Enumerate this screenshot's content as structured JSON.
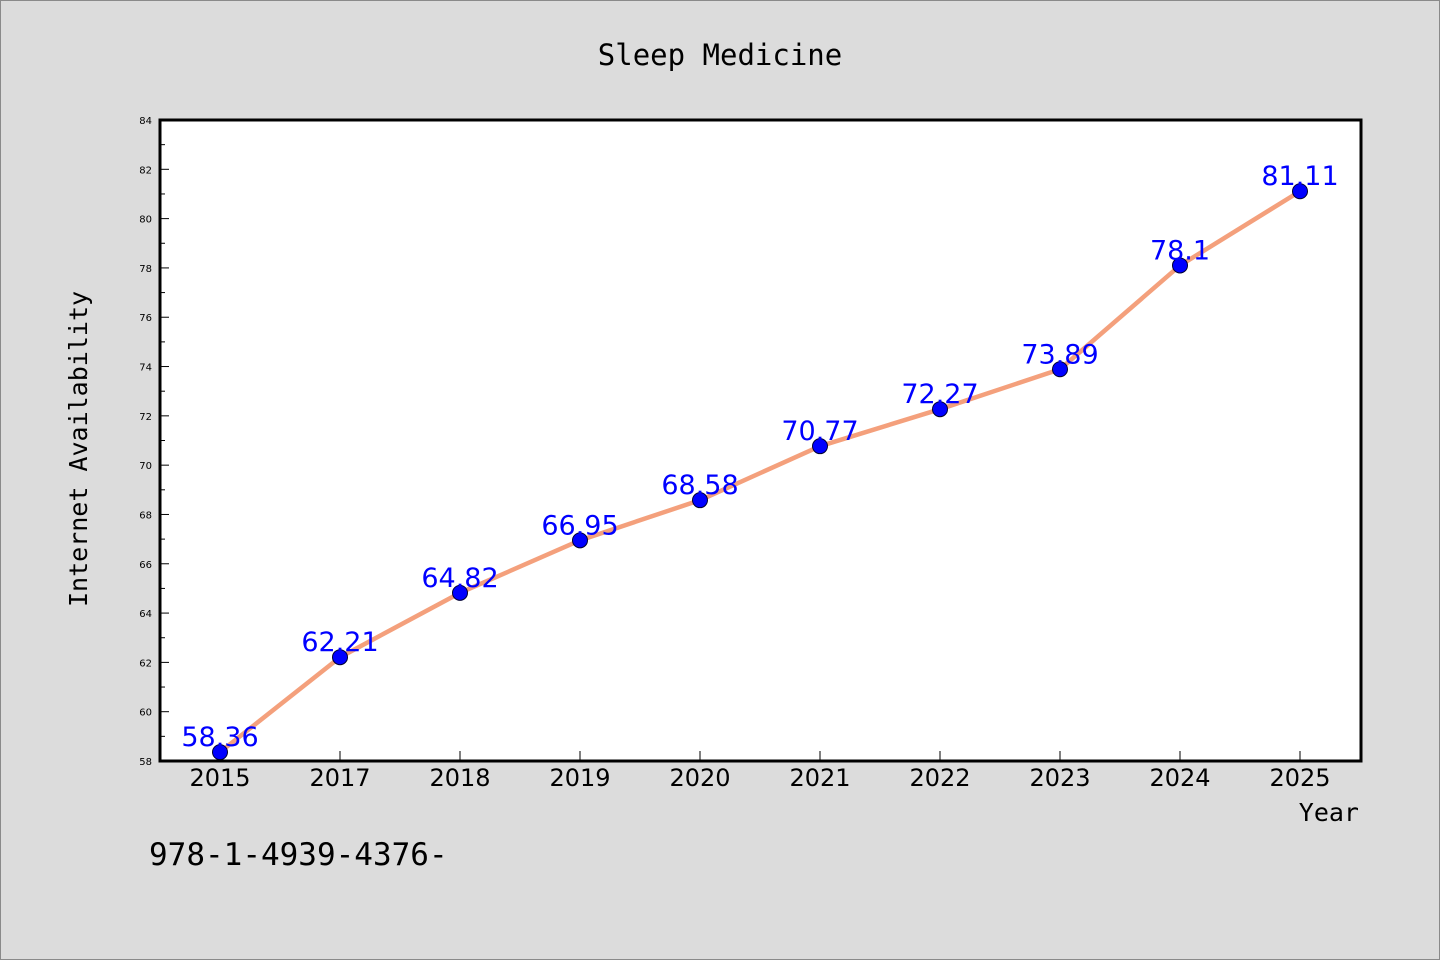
{
  "chart_data": {
    "type": "line",
    "title": "Sleep Medicine",
    "xlabel": "Year",
    "ylabel": "Internet Availability",
    "categories": [
      "2015",
      "2017",
      "2018",
      "2019",
      "2020",
      "2021",
      "2022",
      "2023",
      "2024",
      "2025"
    ],
    "series": [
      {
        "values": [
          58.36,
          62.21,
          64.82,
          66.95,
          68.58,
          70.77,
          72.27,
          73.89,
          78.1,
          81.11
        ],
        "labels": [
          "58.36",
          "62.21",
          "64.82",
          "66.95",
          "68.58",
          "70.77",
          "72.27",
          "73.89",
          "78.1",
          "81.11"
        ],
        "line_color": "#f4a07c",
        "marker_color": "#0000ff"
      }
    ],
    "ylim": [
      58,
      84
    ],
    "yticks": [
      "58",
      "60",
      "62",
      "64",
      "66",
      "68",
      "70",
      "72",
      "74",
      "76",
      "78",
      "80",
      "82",
      "84"
    ],
    "grid": false,
    "legend": "none"
  },
  "footer_text": "978-1-4939-4376-",
  "colors": {
    "background": "#dcdcdc",
    "plot_area": "#ffffff",
    "label_text": "#0000ff"
  }
}
